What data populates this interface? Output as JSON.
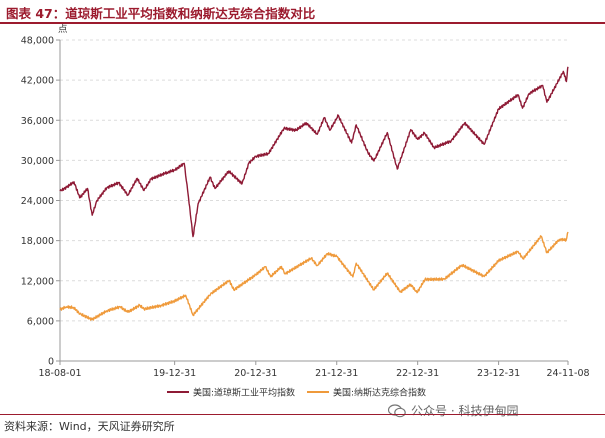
{
  "header": {
    "title": "图表 47：道琼斯工业平均指数和纳斯达克综合指数对比"
  },
  "footer": {
    "source": "资料来源：Wind，天风证券研究所",
    "watermark": "公众号 · 科技伊甸园"
  },
  "colors": {
    "dow": "#8e1a35",
    "nasdaq": "#ef9a3b",
    "accent": "#9c1b2e"
  },
  "chart_data": {
    "type": "line",
    "title": "图表 47：道琼斯工业平均指数和纳斯达克综合指数对比",
    "ylabel": "点",
    "ylim": [
      0,
      48000
    ],
    "yticks": [
      "0",
      "6,000",
      "12,000",
      "18,000",
      "24,000",
      "30,000",
      "36,000",
      "42,000",
      "48,000"
    ],
    "xlim": [
      "18-08-01",
      "24-11-08"
    ],
    "xticks": [
      "18-08-01",
      "19-12-31",
      "20-12-31",
      "21-12-31",
      "22-12-31",
      "23-12-31",
      "24-11-08"
    ],
    "grid": "horizontal dashed",
    "legend": "bottom-center",
    "series": [
      {
        "name": "美国:道琼斯工业平均指数",
        "color": "#8e1a35",
        "points": [
          [
            "18-08-01",
            25400
          ],
          [
            "18-09-01",
            26000
          ],
          [
            "18-10-03",
            26800
          ],
          [
            "18-10-29",
            24400
          ],
          [
            "18-12-03",
            25800
          ],
          [
            "18-12-24",
            21800
          ],
          [
            "19-01-15",
            24000
          ],
          [
            "19-02-28",
            25900
          ],
          [
            "19-04-23",
            26650
          ],
          [
            "19-06-03",
            24800
          ],
          [
            "19-07-15",
            27300
          ],
          [
            "19-08-15",
            25500
          ],
          [
            "19-09-15",
            27200
          ],
          [
            "19-11-27",
            28200
          ],
          [
            "19-12-31",
            28540
          ],
          [
            "20-02-12",
            29550
          ],
          [
            "20-02-28",
            25400
          ],
          [
            "20-03-23",
            18600
          ],
          [
            "20-04-15",
            23500
          ],
          [
            "20-06-08",
            27500
          ],
          [
            "20-06-30",
            25800
          ],
          [
            "20-08-31",
            28400
          ],
          [
            "20-10-30",
            26500
          ],
          [
            "20-11-30",
            29600
          ],
          [
            "20-12-31",
            30600
          ],
          [
            "21-02-26",
            31000
          ],
          [
            "21-05-07",
            34800
          ],
          [
            "21-06-30",
            34500
          ],
          [
            "21-08-16",
            35600
          ],
          [
            "21-10-04",
            33900
          ],
          [
            "21-11-05",
            36400
          ],
          [
            "21-11-30",
            34500
          ],
          [
            "21-12-31",
            36300
          ],
          [
            "22-01-05",
            36800
          ],
          [
            "22-03-08",
            32600
          ],
          [
            "22-03-29",
            35300
          ],
          [
            "22-05-20",
            31200
          ],
          [
            "22-06-17",
            29900
          ],
          [
            "22-08-16",
            34150
          ],
          [
            "22-09-30",
            28700
          ],
          [
            "22-11-30",
            34600
          ],
          [
            "22-12-31",
            33150
          ],
          [
            "23-01-31",
            34100
          ],
          [
            "23-03-15",
            31900
          ],
          [
            "23-05-31",
            32900
          ],
          [
            "23-07-31",
            35600
          ],
          [
            "23-10-27",
            32400
          ],
          [
            "23-12-31",
            37700
          ],
          [
            "24-03-28",
            39800
          ],
          [
            "24-04-17",
            37800
          ],
          [
            "24-05-17",
            40000
          ],
          [
            "24-07-17",
            41200
          ],
          [
            "24-08-05",
            38700
          ],
          [
            "24-10-18",
            43300
          ],
          [
            "24-11-01",
            41800
          ],
          [
            "24-11-06",
            43700
          ],
          [
            "24-11-08",
            43990
          ]
        ]
      },
      {
        "name": "美国:纳斯达克综合指数",
        "color": "#ef9a3b",
        "points": [
          [
            "18-08-01",
            7700
          ],
          [
            "18-08-29",
            8100
          ],
          [
            "18-10-01",
            8000
          ],
          [
            "18-10-30",
            7050
          ],
          [
            "18-12-24",
            6200
          ],
          [
            "19-02-28",
            7500
          ],
          [
            "19-04-30",
            8100
          ],
          [
            "19-06-03",
            7300
          ],
          [
            "19-07-26",
            8330
          ],
          [
            "19-08-15",
            7770
          ],
          [
            "19-10-31",
            8290
          ],
          [
            "19-12-31",
            8970
          ],
          [
            "20-02-19",
            9820
          ],
          [
            "20-03-23",
            6860
          ],
          [
            "20-06-10",
            10020
          ],
          [
            "20-09-02",
            12050
          ],
          [
            "20-09-23",
            10630
          ],
          [
            "20-12-31",
            12890
          ],
          [
            "21-02-12",
            14100
          ],
          [
            "21-03-08",
            12610
          ],
          [
            "21-04-26",
            14130
          ],
          [
            "21-05-12",
            13030
          ],
          [
            "21-09-07",
            15370
          ],
          [
            "21-10-04",
            14260
          ],
          [
            "21-11-19",
            16060
          ],
          [
            "21-12-31",
            15640
          ],
          [
            "22-03-14",
            12580
          ],
          [
            "22-03-29",
            14620
          ],
          [
            "22-06-16",
            10650
          ],
          [
            "22-08-16",
            13130
          ],
          [
            "22-10-14",
            10320
          ],
          [
            "22-11-30",
            11470
          ],
          [
            "22-12-28",
            10210
          ],
          [
            "23-02-02",
            12200
          ],
          [
            "23-04-30",
            12230
          ],
          [
            "23-07-19",
            14360
          ],
          [
            "23-10-27",
            12640
          ],
          [
            "23-12-31",
            15010
          ],
          [
            "24-03-28",
            16380
          ],
          [
            "24-04-19",
            15280
          ],
          [
            "24-07-10",
            18650
          ],
          [
            "24-08-05",
            16200
          ],
          [
            "24-09-30",
            18190
          ],
          [
            "24-10-31",
            18100
          ],
          [
            "24-11-08",
            19290
          ]
        ]
      }
    ]
  }
}
